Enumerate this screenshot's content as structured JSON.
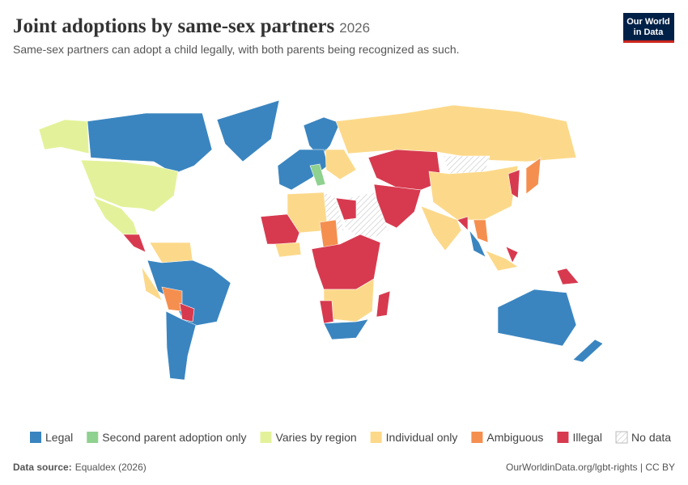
{
  "header": {
    "title": "Joint adoptions by same-sex partners",
    "year": "2026",
    "subtitle": "Same-sex partners can adopt a child legally, with both parents being recognized as such.",
    "logo": [
      "Our World",
      "in Data"
    ]
  },
  "legend": {
    "items": [
      {
        "label": "Legal",
        "color": "#3a85c0"
      },
      {
        "label": "Second parent adoption only",
        "color": "#8fd18f"
      },
      {
        "label": "Varies by region",
        "color": "#e3f29a"
      },
      {
        "label": "Individual only",
        "color": "#fcd98a"
      },
      {
        "label": "Ambiguous",
        "color": "#f58f4f"
      },
      {
        "label": "Illegal",
        "color": "#d73a4f"
      },
      {
        "label": "No data",
        "color": "#cfcfcf",
        "pattern": "hatch"
      }
    ]
  },
  "footer": {
    "source_label": "Data source:",
    "source": "Equaldex (2026)",
    "link": "OurWorldinData.org/lgbt-rights | CC BY"
  }
}
